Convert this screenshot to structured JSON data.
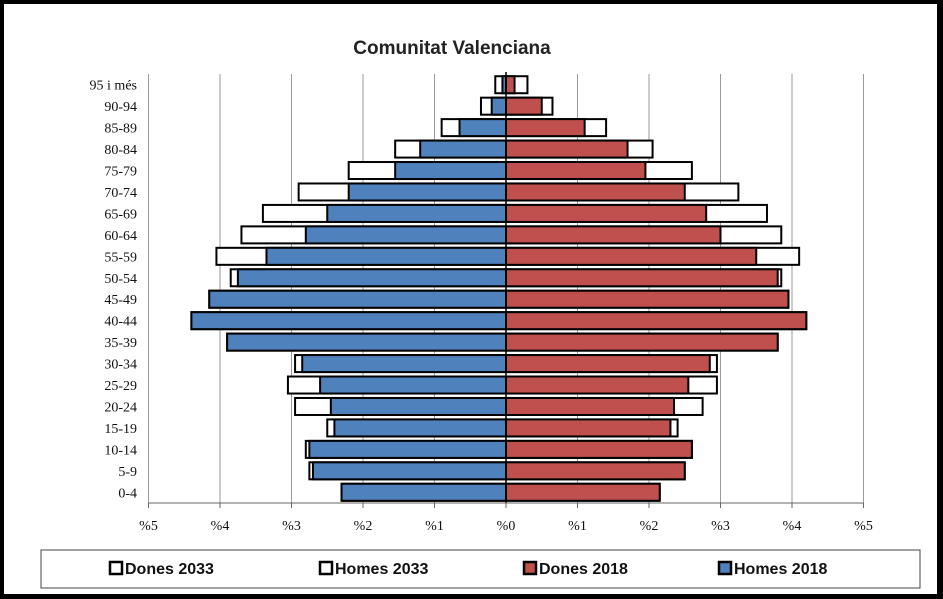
{
  "chart_data": {
    "type": "bar",
    "orientation": "horizontal-population-pyramid",
    "title": "Comunitat Valenciana",
    "categories": [
      "95 i més",
      "90-94",
      "85-89",
      "80-84",
      "75-79",
      "70-74",
      "65-69",
      "60-64",
      "55-59",
      "50-54",
      "45-49",
      "40-44",
      "35-39",
      "30-34",
      "25-29",
      "20-24",
      "15-19",
      "10-14",
      "5-9",
      "0-4"
    ],
    "x_tick_labels": [
      "%5",
      "%4",
      "%3",
      "%2",
      "%1",
      "%0",
      "%1",
      "%2",
      "%3",
      "%4",
      "%5"
    ],
    "xlim": [
      -5,
      5
    ],
    "grid": true,
    "legend_position": "bottom",
    "series": [
      {
        "name": "Dones 2033",
        "side": "right",
        "color": "#ffffff",
        "values": [
          0.3,
          0.65,
          1.4,
          2.05,
          2.6,
          3.25,
          3.65,
          3.85,
          4.1,
          3.85,
          3.95,
          4.2,
          3.8,
          2.95,
          2.95,
          2.75,
          2.4,
          2.6,
          2.5,
          2.15
        ]
      },
      {
        "name": "Homes 2033",
        "side": "left",
        "color": "#ffffff",
        "values": [
          0.15,
          0.35,
          0.9,
          1.55,
          2.2,
          2.9,
          3.4,
          3.7,
          4.05,
          3.85,
          4.15,
          4.4,
          3.9,
          2.95,
          3.05,
          2.95,
          2.5,
          2.8,
          2.75,
          2.3
        ]
      },
      {
        "name": "Dones 2018",
        "side": "right",
        "color": "#c0504d",
        "values": [
          0.12,
          0.5,
          1.1,
          1.7,
          1.95,
          2.5,
          2.8,
          3.0,
          3.5,
          3.8,
          3.95,
          4.2,
          3.8,
          2.85,
          2.55,
          2.35,
          2.3,
          2.6,
          2.5,
          2.15
        ]
      },
      {
        "name": "Homes 2018",
        "side": "left",
        "color": "#4f81bd",
        "values": [
          0.05,
          0.2,
          0.65,
          1.2,
          1.55,
          2.2,
          2.5,
          2.8,
          3.35,
          3.75,
          4.15,
          4.4,
          3.9,
          2.85,
          2.6,
          2.45,
          2.4,
          2.75,
          2.7,
          2.3
        ]
      }
    ]
  }
}
